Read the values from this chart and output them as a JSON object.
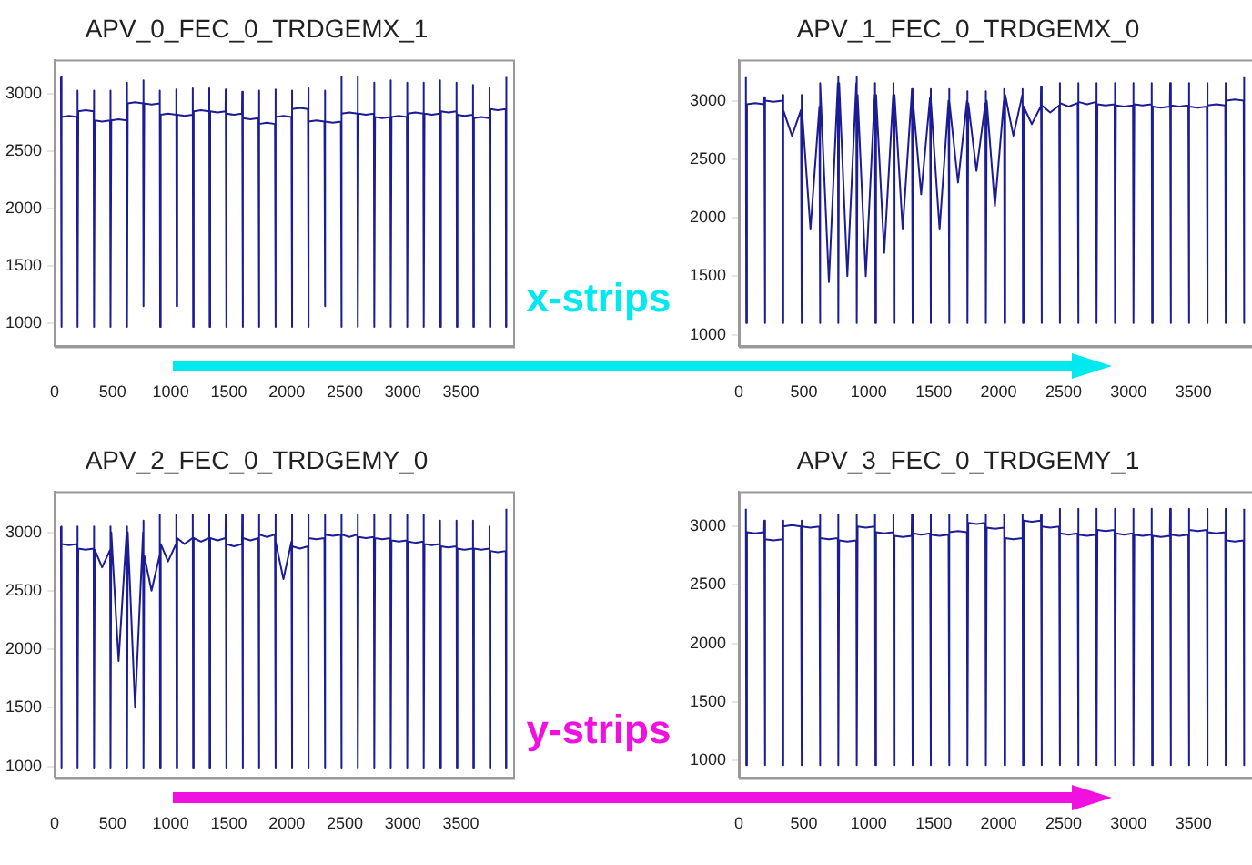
{
  "chart_data": [
    {
      "type": "line",
      "title": "APV_0_FEC_0_TRDGEMX_1",
      "marker": "none",
      "xlim": [
        0,
        3950
      ],
      "xticks": [
        0,
        500,
        1000,
        1500,
        2000,
        2500,
        3000,
        3500
      ],
      "ylim": [
        800,
        3300
      ],
      "yticks": [
        1000,
        1500,
        2000,
        2500,
        3000
      ],
      "annotations": [
        "x-strips"
      ],
      "x": [
        54,
        57,
        62,
        125,
        194,
        196,
        199,
        204,
        267,
        336,
        338,
        341,
        346,
        409,
        478,
        480,
        483,
        488,
        551,
        620,
        622,
        625,
        630,
        693,
        762,
        764,
        767,
        772,
        835,
        904,
        906,
        909,
        914,
        977,
        1046,
        1048,
        1051,
        1056,
        1119,
        1188,
        1190,
        1193,
        1198,
        1261,
        1330,
        1332,
        1335,
        1340,
        1403,
        1472,
        1474,
        1477,
        1482,
        1545,
        1614,
        1616,
        1619,
        1624,
        1687,
        1756,
        1758,
        1761,
        1766,
        1829,
        1898,
        1900,
        1903,
        1908,
        1971,
        2040,
        2042,
        2045,
        2050,
        2113,
        2182,
        2184,
        2187,
        2192,
        2255,
        2324,
        2326,
        2329,
        2334,
        2397,
        2466,
        2468,
        2471,
        2476,
        2539,
        2608,
        2610,
        2613,
        2618,
        2681,
        2750,
        2752,
        2755,
        2760,
        2823,
        2892,
        2894,
        2897,
        2902,
        2965,
        3034,
        3036,
        3039,
        3044,
        3107,
        3176,
        3178,
        3181,
        3186,
        3249,
        3318,
        3320,
        3323,
        3328,
        3391,
        3460,
        3462,
        3465,
        3470,
        3533,
        3602,
        3604,
        3607,
        3612,
        3675,
        3744,
        3746,
        3749,
        3754,
        3817,
        3886,
        3888,
        3891
      ],
      "series": [
        {
          "color": "#1c1c96",
          "values": [
            3150,
            970,
            2800,
            2810,
            2800,
            3030,
            970,
            2850,
            2860,
            2850,
            3030,
            970,
            2770,
            2760,
            2770,
            3030,
            970,
            2770,
            2780,
            2770,
            3100,
            970,
            2920,
            2930,
            2920,
            3120,
            1150,
            2920,
            2910,
            2920,
            3030,
            970,
            2820,
            2830,
            2820,
            3040,
            1150,
            2820,
            2810,
            2820,
            3050,
            970,
            2850,
            2860,
            2850,
            3050,
            970,
            2850,
            2840,
            2850,
            3040,
            970,
            2830,
            2820,
            2830,
            3020,
            970,
            2790,
            2780,
            2790,
            3030,
            970,
            2740,
            2750,
            2740,
            3040,
            970,
            2800,
            2810,
            2800,
            3030,
            970,
            2870,
            2880,
            2870,
            3050,
            970,
            2760,
            2770,
            2760,
            3030,
            1150,
            2760,
            2750,
            2760,
            3150,
            970,
            2830,
            2840,
            2830,
            3150,
            970,
            2830,
            2820,
            2830,
            3100,
            970,
            2800,
            2790,
            2800,
            3120,
            970,
            2800,
            2810,
            2800,
            3100,
            970,
            2830,
            2840,
            2830,
            3100,
            970,
            2830,
            2820,
            2830,
            3120,
            970,
            2850,
            2840,
            2850,
            3100,
            970,
            2820,
            2810,
            2820,
            3080,
            970,
            2790,
            2800,
            2790,
            3050,
            970,
            2870,
            2860,
            2870,
            970,
            3150
          ]
        }
      ]
    },
    {
      "type": "line",
      "title": "APV_1_FEC_0_TRDGEMX_0",
      "marker": "none",
      "xlim": [
        0,
        3950
      ],
      "xticks": [
        0,
        500,
        1000,
        1500,
        2000,
        2500,
        3000,
        3500
      ],
      "ylim": [
        900,
        3350
      ],
      "yticks": [
        1000,
        1500,
        2000,
        2500,
        3000
      ],
      "x": [
        54,
        57,
        62,
        125,
        194,
        196,
        199,
        204,
        267,
        336,
        338,
        341,
        346,
        409,
        478,
        480,
        483,
        488,
        551,
        620,
        622,
        625,
        630,
        693,
        762,
        764,
        767,
        772,
        835,
        904,
        906,
        909,
        914,
        977,
        1046,
        1048,
        1051,
        1056,
        1119,
        1188,
        1190,
        1193,
        1198,
        1261,
        1330,
        1332,
        1335,
        1340,
        1403,
        1472,
        1474,
        1477,
        1482,
        1545,
        1614,
        1616,
        1619,
        1624,
        1687,
        1756,
        1758,
        1761,
        1766,
        1829,
        1898,
        1900,
        1903,
        1908,
        1971,
        2040,
        2042,
        2045,
        2050,
        2113,
        2182,
        2184,
        2187,
        2192,
        2255,
        2324,
        2326,
        2329,
        2334,
        2397,
        2466,
        2468,
        2471,
        2476,
        2539,
        2608,
        2610,
        2613,
        2618,
        2681,
        2750,
        2752,
        2755,
        2760,
        2823,
        2892,
        2894,
        2897,
        2902,
        2965,
        3034,
        3036,
        3039,
        3044,
        3107,
        3176,
        3178,
        3181,
        3186,
        3249,
        3318,
        3320,
        3323,
        3328,
        3391,
        3460,
        3462,
        3465,
        3470,
        3533,
        3602,
        3604,
        3607,
        3612,
        3675,
        3744,
        3746,
        3749,
        3754,
        3817,
        3886,
        3888,
        3891
      ],
      "series": [
        {
          "color": "#1c1c96",
          "values": [
            3200,
            1100,
            2970,
            2980,
            2970,
            3030,
            1100,
            3000,
            2990,
            3000,
            3050,
            1100,
            2920,
            2700,
            2920,
            3050,
            1100,
            2950,
            1900,
            2950,
            3150,
            1100,
            3150,
            1450,
            3150,
            3200,
            1100,
            3150,
            1500,
            3150,
            3200,
            1100,
            3050,
            1500,
            3050,
            3150,
            1100,
            3050,
            1700,
            3050,
            3150,
            1100,
            3050,
            1900,
            3050,
            3100,
            1100,
            3030,
            2200,
            3030,
            3100,
            1100,
            3000,
            1900,
            3000,
            3100,
            1100,
            3000,
            2300,
            3000,
            3080,
            1100,
            2980,
            2400,
            2980,
            3080,
            1100,
            3000,
            2100,
            3000,
            3100,
            1100,
            3050,
            2700,
            3050,
            3100,
            1100,
            2950,
            2800,
            2950,
            3120,
            1100,
            2960,
            2900,
            2960,
            3150,
            1100,
            2980,
            2950,
            2980,
            3150,
            1100,
            2990,
            2970,
            2990,
            3150,
            1100,
            2970,
            2960,
            2970,
            3150,
            1100,
            2960,
            2950,
            2960,
            3150,
            1100,
            2970,
            2960,
            2970,
            3150,
            1100,
            2950,
            2940,
            2950,
            3150,
            1100,
            2960,
            2950,
            2960,
            3150,
            1100,
            2950,
            2940,
            2950,
            3150,
            1100,
            2960,
            2970,
            2960,
            3150,
            1100,
            3000,
            3010,
            3000,
            1100,
            3200
          ]
        }
      ]
    },
    {
      "type": "line",
      "title": "APV_2_FEC_0_TRDGEMY_0",
      "marker": "none",
      "xlim": [
        0,
        3950
      ],
      "xticks": [
        0,
        500,
        1000,
        1500,
        2000,
        2500,
        3000,
        3500
      ],
      "ylim": [
        900,
        3350
      ],
      "yticks": [
        1000,
        1500,
        2000,
        2500,
        3000
      ],
      "annotations": [
        "y-strips"
      ],
      "x": [
        54,
        57,
        62,
        125,
        194,
        196,
        199,
        204,
        267,
        336,
        338,
        341,
        346,
        409,
        478,
        480,
        483,
        488,
        551,
        620,
        622,
        625,
        630,
        693,
        762,
        764,
        767,
        772,
        835,
        904,
        906,
        909,
        914,
        977,
        1046,
        1048,
        1051,
        1056,
        1119,
        1188,
        1190,
        1193,
        1198,
        1261,
        1330,
        1332,
        1335,
        1340,
        1403,
        1472,
        1474,
        1477,
        1482,
        1545,
        1614,
        1616,
        1619,
        1624,
        1687,
        1756,
        1758,
        1761,
        1766,
        1829,
        1898,
        1900,
        1903,
        1908,
        1971,
        2040,
        2042,
        2045,
        2050,
        2113,
        2182,
        2184,
        2187,
        2192,
        2255,
        2324,
        2326,
        2329,
        2334,
        2397,
        2466,
        2468,
        2471,
        2476,
        2539,
        2608,
        2610,
        2613,
        2618,
        2681,
        2750,
        2752,
        2755,
        2760,
        2823,
        2892,
        2894,
        2897,
        2902,
        2965,
        3034,
        3036,
        3039,
        3044,
        3107,
        3176,
        3178,
        3181,
        3186,
        3249,
        3318,
        3320,
        3323,
        3328,
        3391,
        3460,
        3462,
        3465,
        3470,
        3533,
        3602,
        3604,
        3607,
        3612,
        3675,
        3744,
        3746,
        3749,
        3754,
        3817,
        3886,
        3888,
        3891
      ],
      "series": [
        {
          "color": "#1c1c96",
          "values": [
            3050,
            980,
            2900,
            2890,
            2900,
            3050,
            980,
            2860,
            2850,
            2860,
            3050,
            980,
            2850,
            2700,
            2850,
            3050,
            980,
            3000,
            1900,
            3000,
            3050,
            980,
            3000,
            1500,
            3000,
            3100,
            980,
            2800,
            2500,
            2800,
            3150,
            980,
            2900,
            2750,
            2900,
            3150,
            980,
            2950,
            2900,
            2950,
            3150,
            980,
            2950,
            2920,
            2950,
            3150,
            980,
            2950,
            2930,
            2950,
            3150,
            980,
            2900,
            2880,
            2900,
            3150,
            980,
            2950,
            2930,
            2950,
            3150,
            980,
            2980,
            2960,
            2980,
            3150,
            980,
            2920,
            2600,
            2920,
            3150,
            980,
            2880,
            2860,
            2880,
            3150,
            980,
            2950,
            2940,
            2950,
            3150,
            980,
            2980,
            2970,
            2980,
            3150,
            980,
            2980,
            2960,
            2980,
            3150,
            980,
            2960,
            2950,
            2960,
            3150,
            980,
            2950,
            2940,
            2950,
            3150,
            980,
            2930,
            2920,
            2930,
            3150,
            980,
            2920,
            2910,
            2920,
            3150,
            980,
            2900,
            2890,
            2900,
            3100,
            980,
            2880,
            2870,
            2880,
            3100,
            980,
            2860,
            2850,
            2860,
            3100,
            980,
            2860,
            2850,
            2860,
            3050,
            980,
            2840,
            2830,
            2840,
            980,
            3200
          ]
        }
      ]
    },
    {
      "type": "line",
      "title": "APV_3_FEC_0_TRDGEMY_1",
      "marker": "none",
      "xlim": [
        0,
        3950
      ],
      "xticks": [
        0,
        500,
        1000,
        1500,
        2000,
        2500,
        3000,
        3500
      ],
      "ylim": [
        850,
        3300
      ],
      "yticks": [
        1000,
        1500,
        2000,
        2500,
        3000
      ],
      "x": [
        54,
        57,
        62,
        125,
        194,
        196,
        199,
        204,
        267,
        336,
        338,
        341,
        346,
        409,
        478,
        480,
        483,
        488,
        551,
        620,
        622,
        625,
        630,
        693,
        762,
        764,
        767,
        772,
        835,
        904,
        906,
        909,
        914,
        977,
        1046,
        1048,
        1051,
        1056,
        1119,
        1188,
        1190,
        1193,
        1198,
        1261,
        1330,
        1332,
        1335,
        1340,
        1403,
        1472,
        1474,
        1477,
        1482,
        1545,
        1614,
        1616,
        1619,
        1624,
        1687,
        1756,
        1758,
        1761,
        1766,
        1829,
        1898,
        1900,
        1903,
        1908,
        1971,
        2040,
        2042,
        2045,
        2050,
        2113,
        2182,
        2184,
        2187,
        2192,
        2255,
        2324,
        2326,
        2329,
        2334,
        2397,
        2466,
        2468,
        2471,
        2476,
        2539,
        2608,
        2610,
        2613,
        2618,
        2681,
        2750,
        2752,
        2755,
        2760,
        2823,
        2892,
        2894,
        2897,
        2902,
        2965,
        3034,
        3036,
        3039,
        3044,
        3107,
        3176,
        3178,
        3181,
        3186,
        3249,
        3318,
        3320,
        3323,
        3328,
        3391,
        3460,
        3462,
        3465,
        3470,
        3533,
        3602,
        3604,
        3607,
        3612,
        3675,
        3744,
        3746,
        3749,
        3754,
        3817,
        3886,
        3888,
        3891
      ],
      "series": [
        {
          "color": "#1c1c96",
          "values": [
            3150,
            960,
            2950,
            2940,
            2950,
            3050,
            960,
            2890,
            2880,
            2890,
            3050,
            960,
            3000,
            3010,
            3000,
            3050,
            960,
            3000,
            2990,
            3000,
            3100,
            960,
            2900,
            2890,
            2900,
            3100,
            960,
            2880,
            2870,
            2880,
            3100,
            960,
            3000,
            2990,
            3000,
            3100,
            960,
            2950,
            2940,
            2950,
            3100,
            960,
            2920,
            2910,
            2920,
            3100,
            960,
            2940,
            2930,
            2940,
            3100,
            960,
            2930,
            2920,
            2930,
            3100,
            960,
            2950,
            2960,
            2950,
            3100,
            960,
            3030,
            3020,
            3030,
            3100,
            960,
            2990,
            2980,
            2990,
            3100,
            960,
            2900,
            2890,
            2900,
            3100,
            960,
            3050,
            3040,
            3050,
            3100,
            960,
            3000,
            2990,
            3000,
            3150,
            960,
            2940,
            2930,
            2940,
            3150,
            960,
            2930,
            2920,
            2930,
            3150,
            960,
            2970,
            2960,
            2970,
            3150,
            960,
            2940,
            2930,
            2940,
            3150,
            960,
            2930,
            2920,
            2930,
            3150,
            960,
            2920,
            2910,
            2920,
            3150,
            960,
            2930,
            2920,
            2930,
            3150,
            960,
            2970,
            2960,
            2970,
            3150,
            960,
            2950,
            2940,
            2950,
            3150,
            960,
            2880,
            2870,
            2880,
            960,
            3150
          ]
        }
      ]
    }
  ]
}
